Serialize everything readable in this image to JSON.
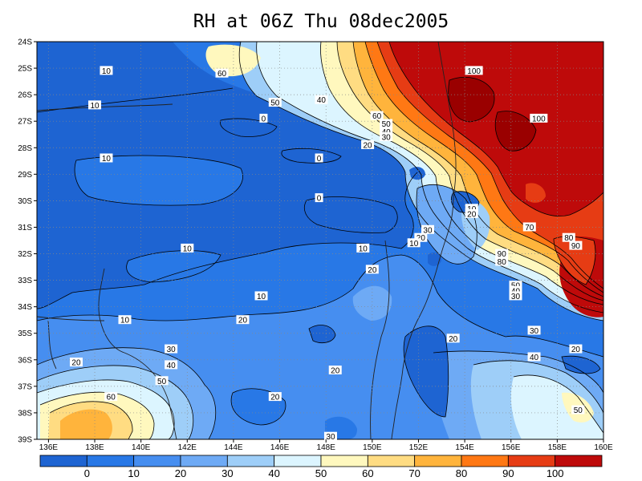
{
  "title": "RH at 06Z Thu 08dec2005",
  "map": {
    "lat_ticks": [
      "24S",
      "25S",
      "26S",
      "27S",
      "28S",
      "29S",
      "30S",
      "31S",
      "32S",
      "33S",
      "34S",
      "35S",
      "36S",
      "37S",
      "38S",
      "39S"
    ],
    "lon_ticks": [
      "136E",
      "138E",
      "140E",
      "142E",
      "144E",
      "146E",
      "148E",
      "150E",
      "152E",
      "154E",
      "156E",
      "158E",
      "160E"
    ],
    "lon_range": [
      135.5,
      160
    ],
    "lat_range": [
      -39,
      -24
    ],
    "grid": "dotted"
  },
  "contour_labels": [
    {
      "text": "10",
      "lon": 138.5,
      "lat": -25.1
    },
    {
      "text": "60",
      "lon": 143.5,
      "lat": -25.2
    },
    {
      "text": "50",
      "lon": 145.8,
      "lat": -26.3
    },
    {
      "text": "40",
      "lon": 147.8,
      "lat": -26.2
    },
    {
      "text": "100",
      "lon": 154.4,
      "lat": -25.1
    },
    {
      "text": "100",
      "lon": 157.2,
      "lat": -26.9
    },
    {
      "text": "10",
      "lon": 138.0,
      "lat": -26.4
    },
    {
      "text": "0",
      "lon": 145.3,
      "lat": -26.9
    },
    {
      "text": "60",
      "lon": 150.2,
      "lat": -26.8
    },
    {
      "text": "50",
      "lon": 150.6,
      "lat": -27.1
    },
    {
      "text": "40",
      "lon": 150.6,
      "lat": -27.4
    },
    {
      "text": "30",
      "lon": 150.6,
      "lat": -27.6
    },
    {
      "text": "20",
      "lon": 149.8,
      "lat": -27.9
    },
    {
      "text": "0",
      "lon": 147.7,
      "lat": -28.4
    },
    {
      "text": "10",
      "lon": 138.5,
      "lat": -28.4
    },
    {
      "text": "0",
      "lon": 147.7,
      "lat": -29.9
    },
    {
      "text": "10",
      "lon": 154.3,
      "lat": -30.3
    },
    {
      "text": "20",
      "lon": 154.3,
      "lat": -30.5
    },
    {
      "text": "30",
      "lon": 152.4,
      "lat": -31.1
    },
    {
      "text": "20",
      "lon": 152.1,
      "lat": -31.4
    },
    {
      "text": "10",
      "lon": 151.8,
      "lat": -31.6
    },
    {
      "text": "70",
      "lon": 156.8,
      "lat": -31.0
    },
    {
      "text": "80",
      "lon": 158.5,
      "lat": -31.4
    },
    {
      "text": "90",
      "lon": 158.8,
      "lat": -31.7
    },
    {
      "text": "90",
      "lon": 155.6,
      "lat": -32.0
    },
    {
      "text": "80",
      "lon": 155.6,
      "lat": -32.3
    },
    {
      "text": "10",
      "lon": 142.0,
      "lat": -31.8
    },
    {
      "text": "10",
      "lon": 149.6,
      "lat": -31.8
    },
    {
      "text": "20",
      "lon": 150.0,
      "lat": -32.6
    },
    {
      "text": "50",
      "lon": 156.2,
      "lat": -33.2
    },
    {
      "text": "40",
      "lon": 156.2,
      "lat": -33.4
    },
    {
      "text": "30",
      "lon": 156.2,
      "lat": -33.6
    },
    {
      "text": "10",
      "lon": 145.2,
      "lat": -33.6
    },
    {
      "text": "10",
      "lon": 139.3,
      "lat": -34.5
    },
    {
      "text": "20",
      "lon": 144.4,
      "lat": -34.5
    },
    {
      "text": "30",
      "lon": 157.0,
      "lat": -34.9
    },
    {
      "text": "20",
      "lon": 153.5,
      "lat": -35.2
    },
    {
      "text": "20",
      "lon": 158.8,
      "lat": -35.6
    },
    {
      "text": "30",
      "lon": 141.3,
      "lat": -35.6
    },
    {
      "text": "20",
      "lon": 137.2,
      "lat": -36.1
    },
    {
      "text": "40",
      "lon": 157.0,
      "lat": -35.9
    },
    {
      "text": "40",
      "lon": 141.3,
      "lat": -36.2
    },
    {
      "text": "20",
      "lon": 148.4,
      "lat": -36.4
    },
    {
      "text": "50",
      "lon": 140.9,
      "lat": -36.8
    },
    {
      "text": "60",
      "lon": 138.7,
      "lat": -37.4
    },
    {
      "text": "20",
      "lon": 145.8,
      "lat": -37.4
    },
    {
      "text": "50",
      "lon": 158.9,
      "lat": -37.9
    },
    {
      "text": "30",
      "lon": 148.2,
      "lat": -38.9
    }
  ],
  "colorbar": {
    "colors": [
      "#1e64d2",
      "#2878e6",
      "#468ef0",
      "#6eaaf5",
      "#9ecef8",
      "#dcf5ff",
      "#fff8be",
      "#ffdc82",
      "#ffb43c",
      "#ff7814",
      "#e63c14",
      "#be0a0a"
    ],
    "labels": [
      "0",
      "10",
      "20",
      "30",
      "40",
      "50",
      "60",
      "70",
      "80",
      "90",
      "100"
    ]
  }
}
